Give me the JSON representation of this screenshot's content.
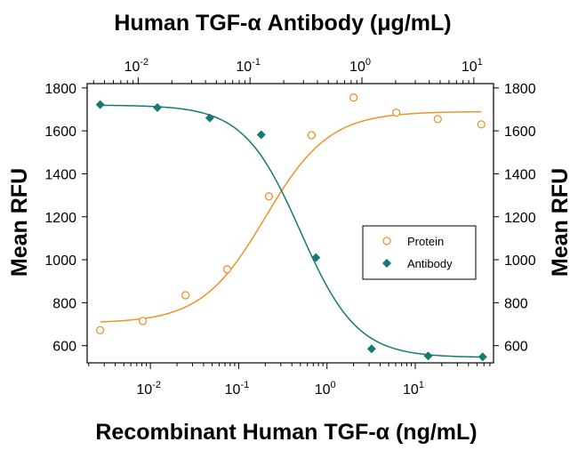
{
  "chart_data": {
    "type": "scatter",
    "title_top": "Human TGF-α Antibody (μg/mL)",
    "xlabel": "Recombinant Human TGF-α (ng/mL)",
    "ylabel_left": "Mean RFU",
    "ylabel_right": "Mean RFU",
    "x_scale": "log",
    "xlim": [
      0.00192,
      77
    ],
    "ylim": [
      520,
      1820
    ],
    "top_xlim": [
      0.0035,
      15
    ],
    "y_ticks": [
      "600",
      "800",
      "1000",
      "1200",
      "1400",
      "1600",
      "1800"
    ],
    "bottom_x_ticks": [
      {
        "base": "10",
        "exp": "-2",
        "value": 0.01
      },
      {
        "base": "10",
        "exp": "-1",
        "value": 0.1
      },
      {
        "base": "10",
        "exp": "0",
        "value": 1
      },
      {
        "base": "10",
        "exp": "1",
        "value": 10
      }
    ],
    "top_x_ticks": [
      {
        "base": "10",
        "exp": "-2",
        "value": 0.01
      },
      {
        "base": "10",
        "exp": "-1",
        "value": 0.1
      },
      {
        "base": "10",
        "exp": "0",
        "value": 1
      },
      {
        "base": "10",
        "exp": "1",
        "value": 10
      }
    ],
    "legend_position": "right-middle",
    "series": [
      {
        "name": "Protein",
        "marker": "open-circle",
        "color": "#e8952b",
        "x": [
          0.0027,
          0.0082,
          0.025,
          0.074,
          0.22,
          0.67,
          2.0,
          6.1,
          18.0,
          56.0
        ],
        "y": [
          672,
          715,
          835,
          955,
          1295,
          1580,
          1755,
          1685,
          1655,
          1630
        ],
        "fit": {
          "bottom": 705,
          "top": 1690,
          "ec50": 0.2,
          "hill": 1.2
        }
      },
      {
        "name": "Antibody",
        "marker": "filled-diamond",
        "color": "#157a72",
        "x": [
          0.0027,
          0.012,
          0.047,
          0.18,
          0.75,
          3.2,
          14.0,
          58.0
        ],
        "y": [
          1722,
          1708,
          1660,
          1582,
          1010,
          585,
          552,
          548
        ],
        "fit": {
          "bottom": 545,
          "top": 1720,
          "ec50": 0.5,
          "hill": 1.35
        }
      }
    ]
  }
}
